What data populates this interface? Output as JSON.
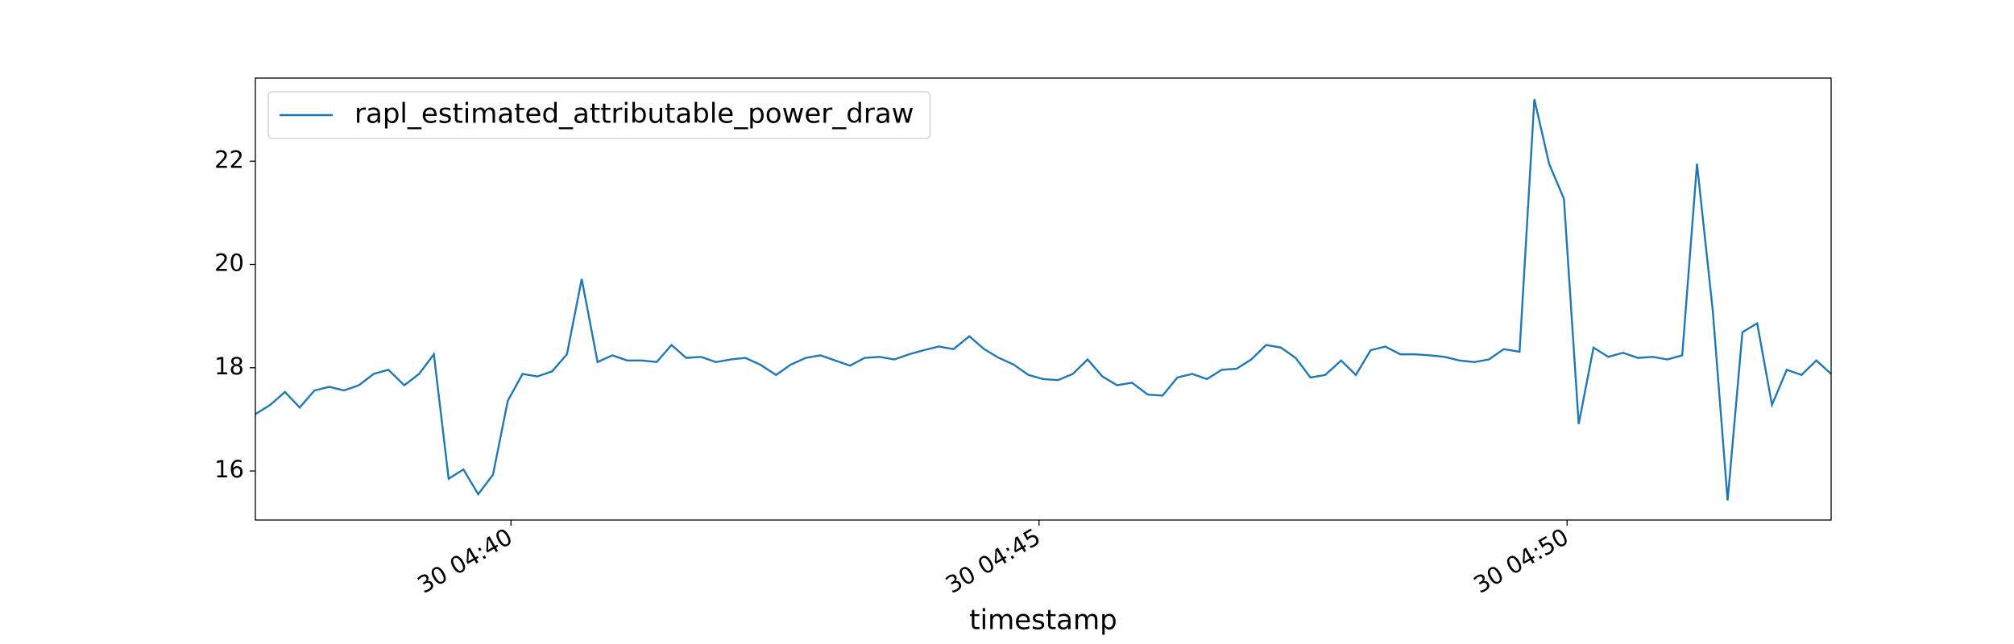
{
  "chart_data": {
    "type": "line",
    "x_label": "timestamp",
    "legend": "upper left",
    "grid": false,
    "xlim": [
      37.58,
      52.5
    ],
    "xticks": [
      {
        "value": 40,
        "label": "30 04:40"
      },
      {
        "value": 45,
        "label": "30 04:45"
      },
      {
        "value": 50,
        "label": "30 04:50"
      }
    ],
    "ylim": [
      15.05,
      23.61
    ],
    "yticks": [
      16,
      18,
      20,
      22
    ],
    "x": [
      37.58,
      37.72,
      37.86,
      38.0,
      38.14,
      38.28,
      38.42,
      38.56,
      38.7,
      38.84,
      38.99,
      39.13,
      39.27,
      39.41,
      39.55,
      39.69,
      39.83,
      39.97,
      40.11,
      40.25,
      40.39,
      40.53,
      40.67,
      40.82,
      40.96,
      41.1,
      41.24,
      41.38,
      41.52,
      41.66,
      41.8,
      41.94,
      42.08,
      42.22,
      42.36,
      42.51,
      42.65,
      42.79,
      42.93,
      43.07,
      43.21,
      43.35,
      43.49,
      43.63,
      43.77,
      43.91,
      44.05,
      44.19,
      44.34,
      44.48,
      44.62,
      44.76,
      44.9,
      45.04,
      45.18,
      45.32,
      45.46,
      45.6,
      45.74,
      45.88,
      46.03,
      46.17,
      46.31,
      46.45,
      46.59,
      46.73,
      46.87,
      47.01,
      47.15,
      47.29,
      47.43,
      47.57,
      47.71,
      47.86,
      48.0,
      48.14,
      48.28,
      48.42,
      48.56,
      48.7,
      48.84,
      48.98,
      49.12,
      49.26,
      49.4,
      49.55,
      49.69,
      49.83,
      49.97,
      50.11,
      50.25,
      50.39,
      50.53,
      50.67,
      50.81,
      50.95,
      51.09,
      51.23,
      51.38,
      51.52,
      51.66,
      51.8,
      51.94,
      52.08,
      52.22,
      52.36,
      52.5
    ],
    "series": [
      {
        "name": "rapl_estimated_attributable_power_draw",
        "color": "#1f77b4",
        "values": [
          17.1,
          17.28,
          17.53,
          17.23,
          17.56,
          17.63,
          17.56,
          17.66,
          17.88,
          17.96,
          17.66,
          17.88,
          18.26,
          15.85,
          16.03,
          15.55,
          15.93,
          17.36,
          17.88,
          17.83,
          17.93,
          18.26,
          19.72,
          18.11,
          18.24,
          18.14,
          18.14,
          18.11,
          18.44,
          18.19,
          18.21,
          18.11,
          18.16,
          18.19,
          18.06,
          17.86,
          18.06,
          18.19,
          18.24,
          18.14,
          18.04,
          18.19,
          18.21,
          18.16,
          18.26,
          18.34,
          18.41,
          18.36,
          18.61,
          18.36,
          18.19,
          18.06,
          17.86,
          17.78,
          17.76,
          17.88,
          18.16,
          17.83,
          17.66,
          17.71,
          17.48,
          17.46,
          17.81,
          17.88,
          17.78,
          17.96,
          17.98,
          18.16,
          18.44,
          18.39,
          18.19,
          17.81,
          17.86,
          18.14,
          17.86,
          18.34,
          18.41,
          18.26,
          18.26,
          18.24,
          18.21,
          18.14,
          18.11,
          18.16,
          18.36,
          18.31,
          23.2,
          21.95,
          21.27,
          16.91,
          18.39,
          18.21,
          18.29,
          18.19,
          18.21,
          18.16,
          18.24,
          21.95,
          19.09,
          15.43,
          18.69,
          18.86,
          17.28,
          17.96,
          17.86,
          18.14,
          17.88
        ]
      }
    ]
  }
}
